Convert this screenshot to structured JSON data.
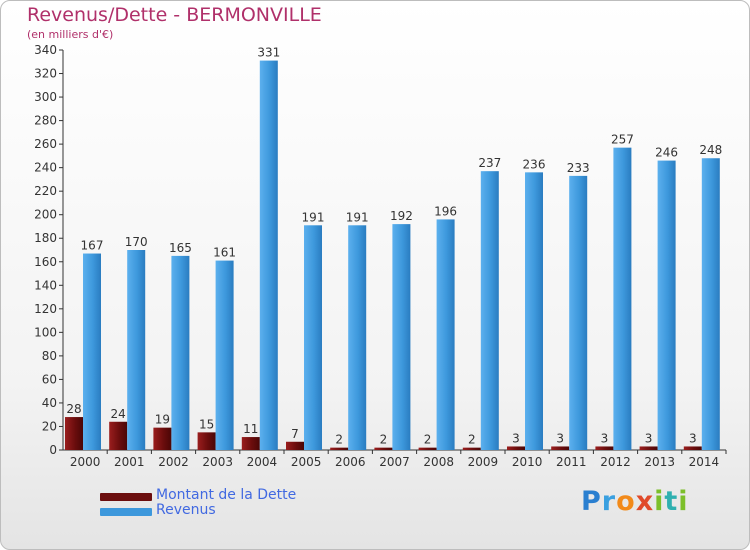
{
  "title": "Revenus/Dette - BERMONVILLE",
  "subtitle": "(en milliers d'€)",
  "logo_text": "Proxiti",
  "chart_data": {
    "type": "bar",
    "title": "Revenus/Dette - BERMONVILLE",
    "subtitle": "(en milliers d'€)",
    "xlabel": "",
    "ylabel": "",
    "categories": [
      "2000",
      "2001",
      "2002",
      "2003",
      "2004",
      "2005",
      "2006",
      "2007",
      "2008",
      "2009",
      "2010",
      "2011",
      "2012",
      "2013",
      "2014"
    ],
    "series": [
      {
        "name": "Montant de la Dette",
        "color": "#6b0d0d",
        "values": [
          28,
          24,
          19,
          15,
          11,
          7,
          2,
          2,
          2,
          2,
          3,
          3,
          3,
          3,
          3
        ]
      },
      {
        "name": "Revenus",
        "color": "#3d98dc",
        "values": [
          167,
          170,
          165,
          161,
          331,
          191,
          191,
          192,
          196,
          237,
          236,
          233,
          257,
          246,
          248
        ]
      }
    ],
    "ylim": [
      0,
      340
    ],
    "yticks": [
      0,
      20,
      40,
      60,
      80,
      100,
      120,
      140,
      160,
      180,
      200,
      220,
      240,
      260,
      280,
      300,
      320,
      340
    ],
    "grid": false,
    "legend_position": "bottom-left"
  }
}
